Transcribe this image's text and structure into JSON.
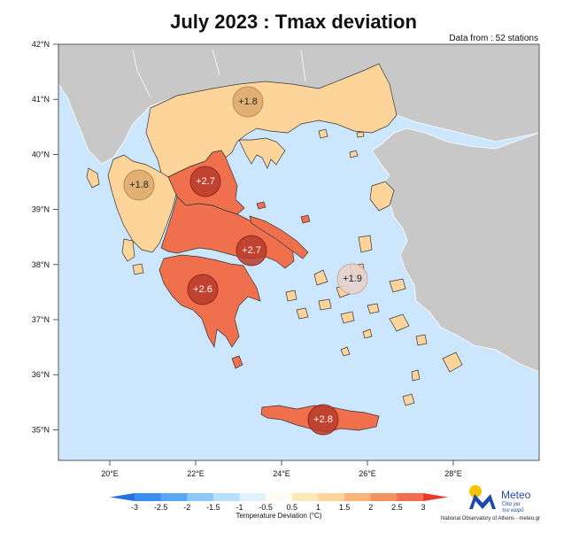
{
  "title": "July 2023 : Tmax deviation",
  "source_note": "Data from : 52 stations",
  "map": {
    "lat_labels": [
      "42°N",
      "41°N",
      "40°N",
      "39°N",
      "38°N",
      "37°N",
      "36°N",
      "35°N"
    ],
    "lon_labels": [
      "20°E",
      "22°E",
      "24°E",
      "26°E",
      "28°E"
    ],
    "sea_color": "#cce6fd",
    "land_color": "#c8c8c8",
    "regions": [
      {
        "name": "Macedonia-Thrace",
        "value": "+1.8",
        "deviation": 1.8,
        "fill": "#fdd49a"
      },
      {
        "name": "Epirus",
        "value": "+1.8",
        "deviation": 1.8,
        "fill": "#fdd49a"
      },
      {
        "name": "Thessaly",
        "value": "+2.7",
        "deviation": 2.7,
        "fill": "#f0704e"
      },
      {
        "name": "Central Greece",
        "value": "+2.7",
        "deviation": 2.7,
        "fill": "#f0704e"
      },
      {
        "name": "Peloponnese",
        "value": "+2.6",
        "deviation": 2.6,
        "fill": "#f0704e"
      },
      {
        "name": "Aegean Islands",
        "value": "+1.9",
        "deviation": 1.9,
        "fill": "#fdd49a"
      },
      {
        "name": "Crete",
        "value": "+2.8",
        "deviation": 2.8,
        "fill": "#f0704e"
      }
    ]
  },
  "colorbar": {
    "title": "Temperature Deviation (°C)",
    "ticks": [
      "-3",
      "-2.5",
      "-2",
      "-1.5",
      "-1",
      "-0.5",
      "0.5",
      "1",
      "1.5",
      "2",
      "2.5",
      "3"
    ],
    "colors": [
      "#3a8ef0",
      "#5aa8f5",
      "#8cc8f8",
      "#b6e0fb",
      "#dff2fd",
      "#fffdf2",
      "#fde8b8",
      "#fdd49a",
      "#fcb37a",
      "#f59262",
      "#f0704e"
    ]
  },
  "logo": {
    "name": "Meteo",
    "tagline_1": "Όλα για",
    "tagline_2": "τον καιρό"
  },
  "footer": "National Observatory of Athens - meteo.gr"
}
